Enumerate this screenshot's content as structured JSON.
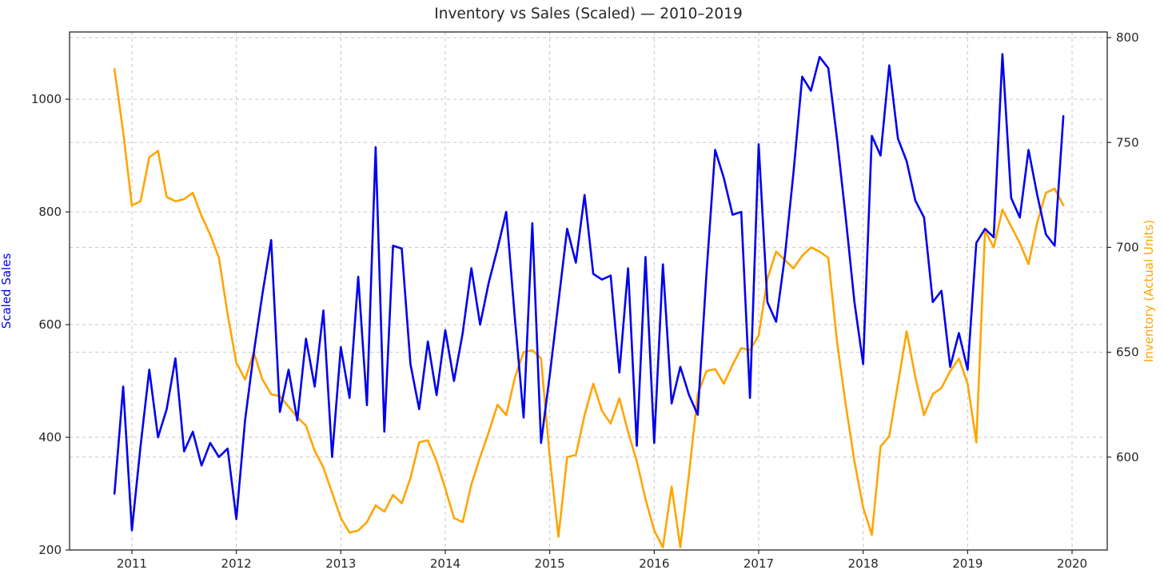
{
  "chart_data": {
    "type": "line",
    "title": "Inventory vs Sales (Scaled) — 2010–2019",
    "x_monthly_start": "2010-11",
    "x_months": 110,
    "x_tick_labels": [
      "2011",
      "2012",
      "2013",
      "2014",
      "2015",
      "2016",
      "2017",
      "2018",
      "2019",
      "2020"
    ],
    "grid": true,
    "legend": false,
    "axes": {
      "left": {
        "label": "Scaled Sales",
        "color": "#0000ee",
        "ticks": [
          200,
          400,
          600,
          800,
          1000
        ],
        "ylim": [
          200,
          1119.3
        ]
      },
      "right": {
        "label": "Inventory (Actual Units)",
        "color": "#ffa500",
        "ticks": [
          600,
          650,
          700,
          750,
          800
        ],
        "ylim": [
          555.7,
          802.7
        ]
      }
    },
    "series": [
      {
        "name": "Scaled Sales",
        "axis": "left",
        "color": "#0000ee",
        "values": [
          300,
          490,
          235,
          385,
          520,
          400,
          450,
          540,
          375,
          410,
          350,
          390,
          365,
          380,
          255,
          430,
          550,
          655,
          750,
          445,
          520,
          430,
          575,
          490,
          625,
          365,
          560,
          470,
          685,
          457,
          915,
          410,
          740,
          735,
          530,
          450,
          570,
          475,
          590,
          500,
          585,
          700,
          600,
          675,
          735,
          800,
          610,
          435,
          780,
          390,
          510,
          640,
          770,
          710,
          830,
          690,
          680,
          687,
          515,
          700,
          385,
          720,
          390,
          707,
          460,
          525,
          475,
          440,
          690,
          910,
          860,
          795,
          800,
          470,
          920,
          640,
          605,
          720,
          870,
          1040,
          1015,
          1075,
          1055,
          930,
          790,
          640,
          530,
          935,
          900,
          1060,
          930,
          890,
          820,
          790,
          640,
          660,
          525,
          585,
          520,
          745,
          770,
          755,
          1080,
          825,
          790,
          910,
          830,
          760,
          740,
          970
        ]
      },
      {
        "name": "Inventory (Actual Units)",
        "axis": "right",
        "color": "#ffa500",
        "values": [
          785,
          755,
          720,
          722,
          743,
          746,
          724,
          722,
          723,
          726,
          715,
          706,
          695,
          668,
          645,
          637,
          650,
          637,
          630,
          629,
          624,
          619,
          615,
          603,
          595,
          583,
          571,
          564,
          565,
          569,
          577,
          574,
          582,
          578,
          590,
          607,
          608,
          598,
          585,
          571,
          569,
          587,
          600,
          612,
          625,
          620,
          638,
          650,
          651,
          647,
          600,
          562,
          600,
          601,
          620,
          635,
          622,
          616,
          628,
          612,
          598,
          580,
          565,
          557,
          586,
          557,
          592,
          630,
          641,
          642,
          635,
          644,
          652,
          651,
          658,
          685,
          698,
          694,
          690,
          696,
          700,
          698,
          695,
          655,
          625,
          598,
          576,
          563,
          605,
          610,
          635,
          660,
          638,
          620,
          630,
          633,
          641,
          647,
          635,
          607,
          708,
          700,
          718,
          710,
          702,
          692,
          712,
          726,
          728,
          720
        ]
      }
    ]
  }
}
